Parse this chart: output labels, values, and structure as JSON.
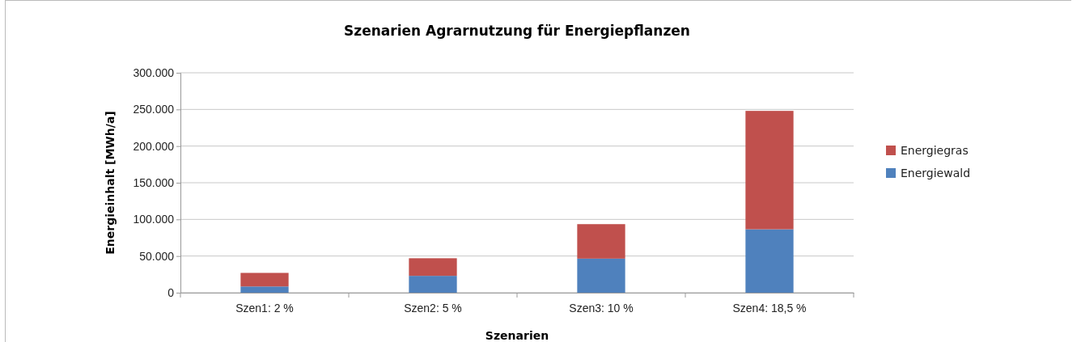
{
  "chart_data": {
    "type": "bar",
    "stacked": true,
    "title": "Szenarien Agrarnutzung für Energiepflanzen",
    "xlabel": "Szenarien",
    "ylabel": "Energieinhalt [MWh/a]",
    "categories": [
      "Szen1: 2 %",
      "Szen2: 5 %",
      "Szen3: 10 %",
      "Szen4: 18,5 %"
    ],
    "series": [
      {
        "name": "Energiewald",
        "color": "#4f81bd",
        "values": [
          8500,
          23000,
          46500,
          86500
        ]
      },
      {
        "name": "Energiegras",
        "color": "#c0504d",
        "values": [
          18500,
          24000,
          47000,
          161500
        ]
      }
    ],
    "ylim": [
      0,
      300000
    ],
    "yticks": [
      {
        "value": 0,
        "label": "0"
      },
      {
        "value": 50000,
        "label": "50.000"
      },
      {
        "value": 100000,
        "label": "100.000"
      },
      {
        "value": 150000,
        "label": "150.000"
      },
      {
        "value": 200000,
        "label": "200.000"
      },
      {
        "value": 250000,
        "label": "250.000"
      },
      {
        "value": 300000,
        "label": "300.000"
      }
    ],
    "grid": "y",
    "legend": "right"
  }
}
